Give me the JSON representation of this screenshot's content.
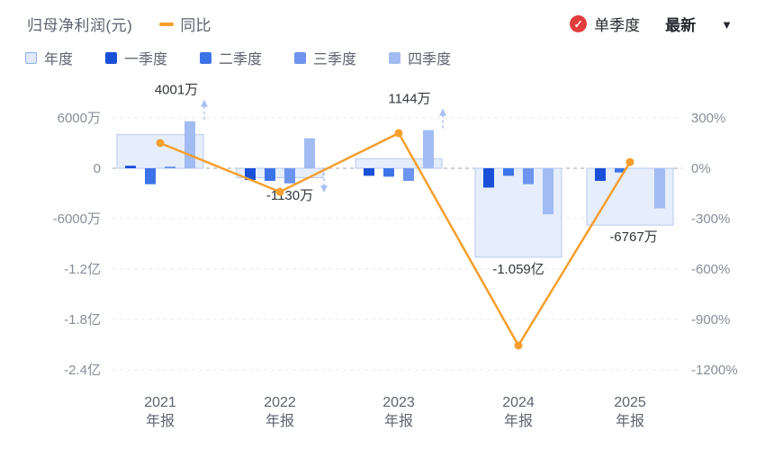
{
  "header": {
    "title": "归母净利润(元)",
    "line_legend": "同比",
    "controls": {
      "check_glyph": "✓",
      "quarter_toggle": "单季度",
      "latest": "最新",
      "dropdown_icon": "▼"
    }
  },
  "legend": [
    {
      "key": "annual",
      "label": "年度",
      "color": "#dfe9fb",
      "border": "#8fb0ea"
    },
    {
      "key": "q1",
      "label": "一季度",
      "color": "#1a50d8"
    },
    {
      "key": "q2",
      "label": "二季度",
      "color": "#3c74e8"
    },
    {
      "key": "q3",
      "label": "三季度",
      "color": "#6d94ee"
    },
    {
      "key": "q4",
      "label": "四季度",
      "color": "#a2bbf2"
    }
  ],
  "chart_data": {
    "type": "bar+line",
    "categories": [
      "2021年报",
      "2022年报",
      "2023年报",
      "2024年报",
      "2025年报"
    ],
    "x_tick_lines": [
      [
        "2021",
        "年报"
      ],
      [
        "2022",
        "年报"
      ],
      [
        "2023",
        "年报"
      ],
      [
        "2024",
        "年报"
      ],
      [
        "2025",
        "年报"
      ]
    ],
    "annual_series": {
      "name": "年度",
      "values_wan": [
        4001,
        -1130,
        1144,
        -10590,
        -6767
      ],
      "labels": [
        "4001万",
        "-1130万",
        "1144万",
        "-1.059亿",
        "-6767万"
      ]
    },
    "quarter_series": [
      {
        "name": "一季度",
        "color": "#1a50d8",
        "values_wan": [
          300,
          -1400,
          -900,
          -2300,
          -1500
        ]
      },
      {
        "name": "二季度",
        "color": "#3c74e8",
        "values_wan": [
          -1900,
          -1500,
          -1000,
          -900,
          -500
        ]
      },
      {
        "name": "三季度",
        "color": "#6d94ee",
        "values_wan": [
          200,
          -1800,
          -1500,
          -1900,
          null
        ]
      },
      {
        "name": "四季度",
        "color": "#a2bbf2",
        "values_wan": [
          5600,
          3570,
          4544,
          -5490,
          -4767
        ]
      }
    ],
    "line_series": {
      "name": "同比",
      "color": "#f59f2e",
      "unit": "%",
      "values_pct": [
        150,
        -140,
        209,
        -1055,
        37
      ]
    },
    "left_axis": {
      "ticks": [
        "6000万",
        "0",
        "-6000万",
        "-1.2亿",
        "-1.8亿",
        "-2.4亿"
      ],
      "values_wan": [
        6000,
        0,
        -6000,
        -12000,
        -18000,
        -24000
      ]
    },
    "right_axis": {
      "ticks": [
        "300%",
        "0%",
        "-300%",
        "-600%",
        "-900%",
        "-1200%"
      ],
      "values_pct": [
        300,
        0,
        -300,
        -600,
        -900,
        -1200
      ]
    },
    "annotations": [
      {
        "year_index": 0,
        "direction": "up"
      },
      {
        "year_index": 1,
        "direction": "down"
      },
      {
        "year_index": 2,
        "direction": "up"
      }
    ],
    "grid": "dashed",
    "legend_position": "top-left",
    "colors": {
      "annual_fill": "#dfe9fb",
      "annual_border": "#b7c9ef",
      "line": "#f59f2e",
      "zero_line": "#9aa1ad",
      "grid_line": "#e5e8ee",
      "check_badge": "#e23d3d"
    }
  }
}
